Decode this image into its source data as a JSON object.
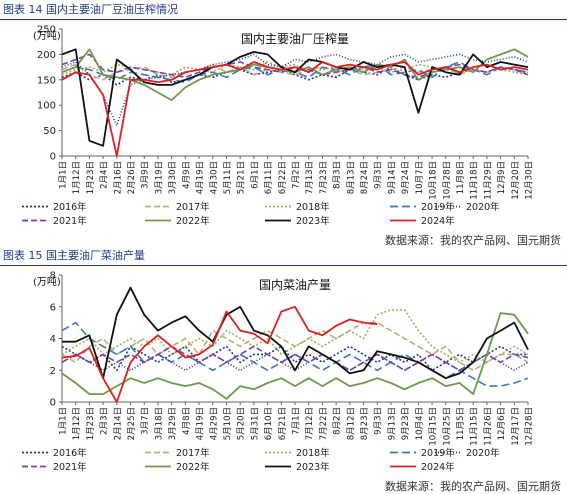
{
  "figures": [
    {
      "caption": "图表 14 国内主要油厂豆油压榨情况",
      "source": "数据来源：我的农产品网、国元期货"
    },
    {
      "caption": "图表 15 国主要油厂菜油产量",
      "source": "数据来源：我的农产品网、国元期货"
    }
  ],
  "chart_data": [
    {
      "type": "line",
      "title": "国内主要油厂压榨量",
      "ylabel": "(万吨)",
      "ylim": [
        0,
        250
      ],
      "yticks": [
        0,
        50,
        100,
        150,
        200,
        250
      ],
      "grid": false,
      "legend_position": "bottom",
      "categories": [
        "1月1日",
        "1月12日",
        "1月23日",
        "2月4日",
        "2月16日",
        "2月26日",
        "3月9日",
        "3月19日",
        "3月30日",
        "4月9日",
        "4月19日",
        "4月30日",
        "5月11日",
        "5月21日",
        "6月1日",
        "6月11日",
        "6月22日",
        "7月2日",
        "7月13日",
        "7月23日",
        "8月3日",
        "8月13日",
        "8月24日",
        "9月3日",
        "9月14日",
        "9月24日",
        "10月7日",
        "10月18日",
        "10月28日",
        "11月8日",
        "11月18日",
        "11月29日",
        "12月9日",
        "12月20日",
        "12月30日"
      ],
      "series": [
        {
          "name": "2016年",
          "color": "#1f3c88",
          "dash": "2,2",
          "values": [
            155,
            165,
            150,
            160,
            140,
            155,
            150,
            160,
            145,
            150,
            160,
            155,
            165,
            170,
            160,
            165,
            170,
            160,
            150,
            160,
            155,
            170,
            165,
            160,
            175,
            160,
            150,
            160,
            155,
            165,
            170,
            165,
            175,
            170,
            165
          ]
        },
        {
          "name": "2017年",
          "color": "#c5a880",
          "dash": "6,3",
          "values": [
            170,
            180,
            160,
            150,
            165,
            170,
            175,
            160,
            155,
            165,
            170,
            180,
            165,
            175,
            160,
            170,
            165,
            160,
            170,
            175,
            165,
            170,
            160,
            165,
            170,
            175,
            165,
            170,
            175,
            160,
            170,
            165,
            175,
            170,
            160
          ]
        },
        {
          "name": "2018年",
          "color": "#9ab35a",
          "dash": "2,2",
          "values": [
            160,
            170,
            175,
            165,
            180,
            175,
            170,
            165,
            160,
            175,
            170,
            165,
            180,
            175,
            170,
            185,
            175,
            180,
            165,
            170,
            175,
            180,
            170,
            175,
            165,
            170,
            180,
            175,
            170,
            165,
            175,
            180,
            170,
            165,
            160
          ]
        },
        {
          "name": "2019年",
          "color": "#3a78c3",
          "dash": "8,4",
          "values": [
            165,
            175,
            170,
            160,
            150,
            165,
            160,
            155,
            150,
            145,
            160,
            165,
            155,
            170,
            175,
            160,
            170,
            165,
            155,
            175,
            170,
            160,
            175,
            180,
            160,
            165,
            170,
            155,
            175,
            185,
            170,
            160,
            175,
            170,
            165
          ]
        },
        {
          "name": "2020年",
          "color": "#1f3c88",
          "dash": "1,2",
          "values": [
            175,
            185,
            160,
            120,
            60,
            140,
            150,
            155,
            160,
            165,
            170,
            180,
            185,
            190,
            200,
            180,
            175,
            190,
            185,
            195,
            200,
            190,
            185,
            180,
            195,
            200,
            185,
            190,
            195,
            200,
            190,
            185,
            190,
            195,
            185
          ]
        },
        {
          "name": "2021年",
          "color": "#7a3fb0",
          "dash": "6,3",
          "values": [
            180,
            190,
            200,
            170,
            165,
            175,
            170,
            165,
            160,
            155,
            165,
            175,
            180,
            185,
            175,
            170,
            165,
            175,
            170,
            160,
            165,
            170,
            175,
            165,
            170,
            160,
            155,
            165,
            175,
            180,
            170,
            165,
            175,
            170,
            160
          ]
        },
        {
          "name": "2022年",
          "color": "#6f9a4a",
          "dash": "",
          "values": [
            165,
            175,
            210,
            160,
            155,
            150,
            140,
            125,
            110,
            135,
            150,
            160,
            165,
            170,
            180,
            175,
            170,
            165,
            175,
            160,
            170,
            175,
            165,
            180,
            175,
            190,
            150,
            165,
            170,
            175,
            165,
            190,
            200,
            210,
            195
          ]
        },
        {
          "name": "2023年",
          "color": "#111111",
          "dash": "",
          "values": [
            200,
            210,
            30,
            20,
            190,
            170,
            145,
            140,
            140,
            150,
            160,
            175,
            180,
            195,
            205,
            200,
            175,
            165,
            190,
            185,
            175,
            170,
            185,
            175,
            180,
            175,
            85,
            175,
            165,
            160,
            200,
            175,
            185,
            180,
            175
          ]
        },
        {
          "name": "2024年",
          "color": "#e02020",
          "dash": "",
          "values": [
            150,
            165,
            160,
            120,
            0,
            150,
            150,
            145,
            150,
            165,
            170,
            175,
            180,
            170,
            185,
            175,
            170,
            175,
            165,
            185,
            175,
            180,
            175,
            170,
            180,
            185,
            160,
            170,
            175,
            165,
            175,
            180,
            170,
            175,
            170
          ]
        }
      ]
    },
    {
      "type": "line",
      "title": "国内菜油产量",
      "ylabel": "(万吨)",
      "ylim": [
        0,
        8
      ],
      "yticks": [
        0,
        2,
        4,
        6,
        8
      ],
      "grid": false,
      "legend_position": "bottom",
      "categories": [
        "1月1日",
        "1月12日",
        "1月23日",
        "2月3日",
        "2月14日",
        "2月25日",
        "3月7日",
        "3月18日",
        "3月29日",
        "4月8日",
        "4月19日",
        "4月29日",
        "5月10日",
        "5月20日",
        "5月31日",
        "6月10日",
        "6月21日",
        "7月1日",
        "7月12日",
        "7月22日",
        "8月2日",
        "8月12日",
        "8月23日",
        "9月3日",
        "9月13日",
        "9月23日",
        "10月4日",
        "10月15日",
        "10月25日",
        "11月5日",
        "11月15日",
        "11月26日",
        "12月6日",
        "12月17日",
        "12月28日"
      ],
      "series": [
        {
          "name": "2016年",
          "color": "#1f3c88",
          "dash": "2,2",
          "values": [
            3.5,
            3,
            2.5,
            3,
            2,
            3.5,
            3,
            2.5,
            3,
            3.5,
            2.5,
            3,
            3.5,
            2.5,
            3,
            3,
            3.5,
            2.5,
            3,
            2.5,
            3,
            3.5,
            3,
            2.5,
            3,
            2.5,
            3,
            2,
            2.5,
            3,
            2.5,
            3,
            3.5,
            3,
            3
          ]
        },
        {
          "name": "2017年",
          "color": "#c5a880",
          "dash": "6,3",
          "values": [
            3,
            2.5,
            3.5,
            4,
            3,
            3.5,
            4,
            3,
            3.5,
            4,
            3,
            4.5,
            4,
            3.5,
            4,
            4.5,
            4,
            3.5,
            4,
            4.5,
            4,
            4.5,
            5,
            5,
            4.5,
            4,
            3.5,
            3,
            3.5,
            2.5,
            2,
            2.5,
            3,
            3,
            2.5
          ]
        },
        {
          "name": "2018年",
          "color": "#9ab35a",
          "dash": "2,2",
          "values": [
            3,
            3.5,
            4,
            3,
            3.5,
            4,
            3.5,
            4,
            3,
            3.5,
            4,
            3.5,
            4.5,
            4,
            3.5,
            4,
            3,
            3.5,
            4,
            3.5,
            4,
            4.5,
            4,
            5.5,
            5.8,
            5.8,
            4.5,
            3.5,
            3,
            2.5,
            3,
            2.5,
            3,
            3.5,
            3
          ]
        },
        {
          "name": "2019年",
          "color": "#3a78c3",
          "dash": "8,4",
          "values": [
            4.5,
            5,
            4,
            3.5,
            3,
            3.5,
            2.5,
            3,
            2.5,
            3,
            2.5,
            2,
            2.5,
            3,
            2.5,
            2,
            2.5,
            3,
            2.5,
            2,
            2.5,
            3,
            2.5,
            2,
            2.5,
            3,
            2.5,
            2,
            1.5,
            2,
            1.5,
            1,
            1,
            1.2,
            1.5
          ]
        },
        {
          "name": "2020年",
          "color": "#1f3c88",
          "dash": "1,2",
          "values": [
            2.5,
            3,
            2.5,
            2,
            2.5,
            2,
            2.5,
            3,
            2.5,
            2,
            2.5,
            3,
            2.5,
            2,
            2.5,
            3,
            2.5,
            2,
            2.5,
            3,
            2.5,
            2,
            2.5,
            3,
            2.5,
            2,
            2.5,
            3,
            2.5,
            2,
            2.5,
            3,
            2.5,
            2,
            2.5
          ]
        },
        {
          "name": "2021年",
          "color": "#7a3fb0",
          "dash": "6,3",
          "values": [
            2.5,
            3,
            2.5,
            3,
            2.5,
            3,
            2.5,
            3,
            3.5,
            3,
            2.5,
            3,
            2.5,
            3,
            3.5,
            3,
            2.5,
            3,
            2.5,
            3,
            2.5,
            2,
            2.5,
            3,
            2.5,
            2,
            2.5,
            3,
            2.5,
            2,
            2.5,
            3,
            2.5,
            3,
            2.8
          ]
        },
        {
          "name": "2022年",
          "color": "#6f9a4a",
          "dash": "",
          "values": [
            1.8,
            1.2,
            0.5,
            0.5,
            1,
            1.5,
            1.2,
            1.5,
            1.2,
            1,
            1.2,
            0.8,
            0.2,
            1,
            0.8,
            1.2,
            1.5,
            1,
            1.5,
            1,
            1.5,
            1,
            1.2,
            1.5,
            1.2,
            0.8,
            1.2,
            1.5,
            1,
            1.2,
            0.5,
            3,
            5.6,
            5.5,
            4.3
          ]
        },
        {
          "name": "2023年",
          "color": "#111111",
          "dash": "",
          "values": [
            3.8,
            3.8,
            4.2,
            1.5,
            5.5,
            7.2,
            5.5,
            4.5,
            5,
            5.4,
            4.5,
            3.8,
            5.5,
            6,
            4.5,
            4.2,
            3.5,
            2,
            3.5,
            3,
            2.5,
            1.8,
            2,
            3.2,
            3,
            2.8,
            2.5,
            2,
            1.5,
            1.8,
            2.5,
            4,
            4.5,
            5,
            3.3
          ]
        },
        {
          "name": "2024年",
          "color": "#e02020",
          "dash": "",
          "values": [
            2.8,
            2.9,
            3.4,
            1.5,
            0,
            2.5,
            3.5,
            4.2,
            3.5,
            2.8,
            3,
            3.6,
            5.7,
            4.5,
            4.3,
            3.7,
            5.7,
            6,
            4.5,
            4.2,
            4.8,
            5.2,
            5,
            4.9,
            null,
            null,
            null,
            null,
            null,
            null,
            null,
            null,
            null,
            null,
            null
          ]
        }
      ]
    }
  ]
}
